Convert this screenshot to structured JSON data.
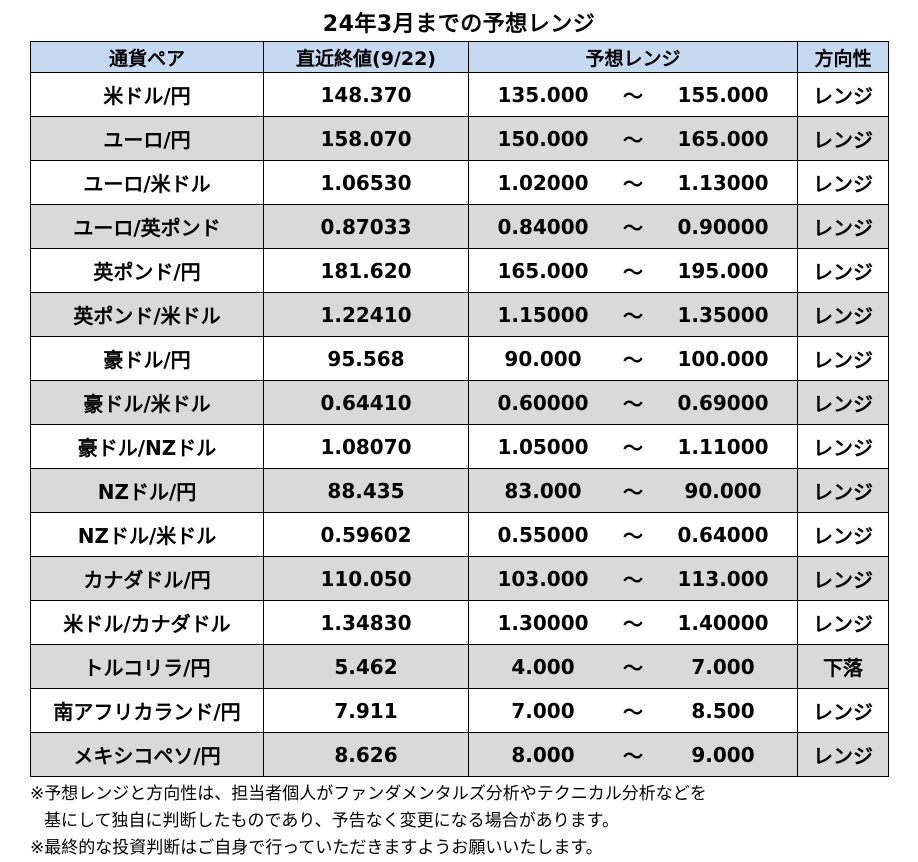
{
  "title": "24年3月までの予想レンジ",
  "headers": {
    "pair": "通貨ペア",
    "last": "直近終値(9/22)",
    "range": "予想レンジ",
    "direction": "方向性"
  },
  "range_separator": "～",
  "rows": [
    {
      "pair": "米ドル/円",
      "last": "148.370",
      "low": "135.000",
      "high": "155.000",
      "direction": "レンジ"
    },
    {
      "pair": "ユーロ/円",
      "last": "158.070",
      "low": "150.000",
      "high": "165.000",
      "direction": "レンジ"
    },
    {
      "pair": "ユーロ/米ドル",
      "last": "1.06530",
      "low": "1.02000",
      "high": "1.13000",
      "direction": "レンジ"
    },
    {
      "pair": "ユーロ/英ポンド",
      "last": "0.87033",
      "low": "0.84000",
      "high": "0.90000",
      "direction": "レンジ"
    },
    {
      "pair": "英ポンド/円",
      "last": "181.620",
      "low": "165.000",
      "high": "195.000",
      "direction": "レンジ"
    },
    {
      "pair": "英ポンド/米ドル",
      "last": "1.22410",
      "low": "1.15000",
      "high": "1.35000",
      "direction": "レンジ"
    },
    {
      "pair": "豪ドル/円",
      "last": "95.568",
      "low": "90.000",
      "high": "100.000",
      "direction": "レンジ"
    },
    {
      "pair": "豪ドル/米ドル",
      "last": "0.64410",
      "low": "0.60000",
      "high": "0.69000",
      "direction": "レンジ"
    },
    {
      "pair": "豪ドル/NZドル",
      "last": "1.08070",
      "low": "1.05000",
      "high": "1.11000",
      "direction": "レンジ"
    },
    {
      "pair": "NZドル/円",
      "last": "88.435",
      "low": "83.000",
      "high": "90.000",
      "direction": "レンジ"
    },
    {
      "pair": "NZドル/米ドル",
      "last": "0.59602",
      "low": "0.55000",
      "high": "0.64000",
      "direction": "レンジ"
    },
    {
      "pair": "カナダドル/円",
      "last": "110.050",
      "low": "103.000",
      "high": "113.000",
      "direction": "レンジ"
    },
    {
      "pair": "米ドル/カナダドル",
      "last": "1.34830",
      "low": "1.30000",
      "high": "1.40000",
      "direction": "レンジ"
    },
    {
      "pair": "トルコリラ/円",
      "last": "5.462",
      "low": "4.000",
      "high": "7.000",
      "direction": "下落"
    },
    {
      "pair": "南アフリカランド/円",
      "last": "7.911",
      "low": "7.000",
      "high": "8.500",
      "direction": "レンジ"
    },
    {
      "pair": "メキシコペソ/円",
      "last": "8.626",
      "low": "8.000",
      "high": "9.000",
      "direction": "レンジ"
    }
  ],
  "notes": [
    "※予想レンジと方向性は、担当者個人がファンダメンタルズ分析やテクニカル分析などを",
    "基にして独自に判断したものであり、予告なく変更になる場合があります。",
    "※最終的な投資判断はご自身で行っていただきますようお願いいたします。"
  ],
  "colors": {
    "header_bg": "#c5d9f1",
    "alt_row_bg": "#d9d9d9",
    "border": "#000000"
  }
}
